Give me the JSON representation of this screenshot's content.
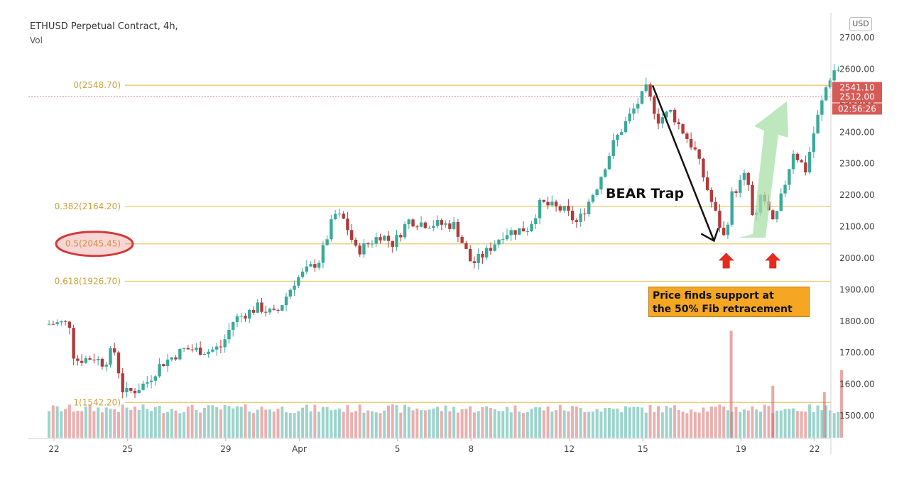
{
  "header": {
    "title": "ETHUSD Perpetual Contract, 4h,",
    "subtitle": "Vol"
  },
  "currency_label": "USD",
  "annotation": {
    "bear_trap": "BEAR Trap",
    "line1": "Price finds support at",
    "line2": "the 50% Fib retracement"
  },
  "colors": {
    "up": "#3aa99a",
    "down": "#b23a3a",
    "fib": "#e8c96a",
    "fib_text": "#c9a23a",
    "price_tag": "#d65a55",
    "annotation_bg": "#f5a623",
    "arrow_red": "#e52b1e",
    "trend_green": "#a8dfa8"
  },
  "chart_data": {
    "type": "candlestick",
    "title": "ETHUSD Perpetual Contract, 4h,",
    "y_ticks": [
      "2700.00",
      "2600.00",
      "2500.00",
      "2400.00",
      "2300.00",
      "2200.00",
      "2100.00",
      "2000.00",
      "1900.00",
      "1800.00",
      "1700.00",
      "1600.00",
      "1500.00"
    ],
    "ylim": [
      1440,
      2735
    ],
    "x_ticks": [
      {
        "label": "22",
        "day": 0
      },
      {
        "label": "25",
        "day": 3
      },
      {
        "label": "29",
        "day": 7
      },
      {
        "label": "Apr",
        "day": 10
      },
      {
        "label": "5",
        "day": 14
      },
      {
        "label": "8",
        "day": 17
      },
      {
        "label": "12",
        "day": 21
      },
      {
        "label": "15",
        "day": 24
      },
      {
        "label": "19",
        "day": 28
      },
      {
        "label": "22",
        "day": 31
      }
    ],
    "fib_levels": [
      {
        "label": "0(2548.70)",
        "value": 2548.7
      },
      {
        "label": "0.382(2164.20)",
        "value": 2164.2
      },
      {
        "label": "0.5(2045.45)",
        "value": 2045.45
      },
      {
        "label": "0.618(1926.70)",
        "value": 1926.7
      },
      {
        "label": "1(1542.20)",
        "value": 1542.2
      }
    ],
    "price_tags": [
      {
        "label": "2541.10",
        "value": 2541.1
      },
      {
        "label": "2512.00",
        "value": 2512.0
      },
      {
        "label": "02:56:26",
        "value": null
      }
    ],
    "anchors": [
      {
        "day": -0.2,
        "price": 1790
      },
      {
        "day": 0.5,
        "price": 1795
      },
      {
        "day": 0.8,
        "price": 1790
      },
      {
        "day": 1.0,
        "price": 1675
      },
      {
        "day": 1.8,
        "price": 1685
      },
      {
        "day": 2.2,
        "price": 1665
      },
      {
        "day": 2.6,
        "price": 1715
      },
      {
        "day": 3.0,
        "price": 1570
      },
      {
        "day": 3.5,
        "price": 1582
      },
      {
        "day": 4.0,
        "price": 1610
      },
      {
        "day": 4.5,
        "price": 1662
      },
      {
        "day": 5.5,
        "price": 1712
      },
      {
        "day": 6.5,
        "price": 1705
      },
      {
        "day": 7.0,
        "price": 1720
      },
      {
        "day": 7.5,
        "price": 1805
      },
      {
        "day": 8.5,
        "price": 1845
      },
      {
        "day": 9.2,
        "price": 1820
      },
      {
        "day": 10.0,
        "price": 1930
      },
      {
        "day": 11.0,
        "price": 1995
      },
      {
        "day": 11.6,
        "price": 2140
      },
      {
        "day": 12.0,
        "price": 2120
      },
      {
        "day": 12.5,
        "price": 2020
      },
      {
        "day": 13.5,
        "price": 2075
      },
      {
        "day": 14.0,
        "price": 2045
      },
      {
        "day": 14.6,
        "price": 2120
      },
      {
        "day": 15.3,
        "price": 2110
      },
      {
        "day": 16.5,
        "price": 2105
      },
      {
        "day": 17.2,
        "price": 1980
      },
      {
        "day": 17.8,
        "price": 2020
      },
      {
        "day": 18.5,
        "price": 2080
      },
      {
        "day": 19.5,
        "price": 2095
      },
      {
        "day": 20.0,
        "price": 2175
      },
      {
        "day": 21.0,
        "price": 2150
      },
      {
        "day": 21.5,
        "price": 2110
      },
      {
        "day": 22.3,
        "price": 2230
      },
      {
        "day": 23.0,
        "price": 2370
      },
      {
        "day": 23.7,
        "price": 2460
      },
      {
        "day": 24.3,
        "price": 2535
      },
      {
        "day": 24.8,
        "price": 2440
      },
      {
        "day": 25.3,
        "price": 2465
      },
      {
        "day": 26.3,
        "price": 2340
      },
      {
        "day": 27.0,
        "price": 2170
      },
      {
        "day": 27.5,
        "price": 2060
      },
      {
        "day": 27.8,
        "price": 2200
      },
      {
        "day": 28.4,
        "price": 2270
      },
      {
        "day": 28.7,
        "price": 2090
      },
      {
        "day": 29.0,
        "price": 2210
      },
      {
        "day": 29.5,
        "price": 2100
      },
      {
        "day": 30.3,
        "price": 2340
      },
      {
        "day": 30.8,
        "price": 2280
      },
      {
        "day": 31.2,
        "price": 2420
      },
      {
        "day": 31.7,
        "price": 2560
      },
      {
        "day": 32.0,
        "price": 2600
      }
    ],
    "volume_spikes": [
      {
        "day": 27.6,
        "value": 1770
      },
      {
        "day": 32.1,
        "value": 1645
      },
      {
        "day": 29.3,
        "value": 1595
      },
      {
        "day": 31.4,
        "value": 1575
      }
    ]
  }
}
